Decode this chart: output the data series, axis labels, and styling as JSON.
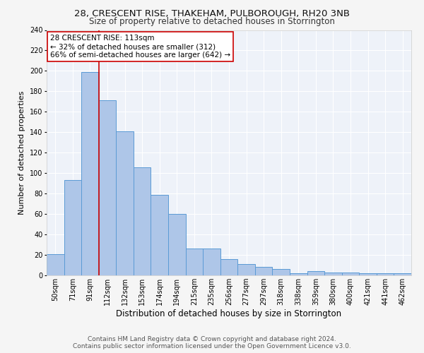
{
  "title1": "28, CRESCENT RISE, THAKEHAM, PULBOROUGH, RH20 3NB",
  "title2": "Size of property relative to detached houses in Storrington",
  "xlabel": "Distribution of detached houses by size in Storrington",
  "ylabel": "Number of detached properties",
  "footer1": "Contains HM Land Registry data © Crown copyright and database right 2024.",
  "footer2": "Contains public sector information licensed under the Open Government Licence v3.0.",
  "bar_labels": [
    "50sqm",
    "71sqm",
    "91sqm",
    "112sqm",
    "132sqm",
    "153sqm",
    "174sqm",
    "194sqm",
    "215sqm",
    "235sqm",
    "256sqm",
    "277sqm",
    "297sqm",
    "318sqm",
    "338sqm",
    "359sqm",
    "380sqm",
    "400sqm",
    "421sqm",
    "441sqm",
    "462sqm"
  ],
  "bar_values": [
    21,
    93,
    199,
    171,
    141,
    106,
    79,
    60,
    26,
    26,
    16,
    11,
    8,
    6,
    2,
    4,
    3,
    3,
    2,
    2,
    2
  ],
  "bar_color": "#aec6e8",
  "bar_edgecolor": "#5b9bd5",
  "annotation_text": "28 CRESCENT RISE: 113sqm\n← 32% of detached houses are smaller (312)\n66% of semi-detached houses are larger (642) →",
  "annotation_box_color": "#ffffff",
  "annotation_box_edgecolor": "#cc0000",
  "vline_color": "#cc0000",
  "vline_x_index": 2,
  "ylim": [
    0,
    240
  ],
  "yticks": [
    0,
    20,
    40,
    60,
    80,
    100,
    120,
    140,
    160,
    180,
    200,
    220,
    240
  ],
  "background_color": "#eef2f9",
  "grid_color": "#ffffff",
  "title1_fontsize": 9.5,
  "title2_fontsize": 8.5,
  "xlabel_fontsize": 8.5,
  "ylabel_fontsize": 8,
  "tick_fontsize": 7,
  "annotation_fontsize": 7.5,
  "footer_fontsize": 6.5
}
